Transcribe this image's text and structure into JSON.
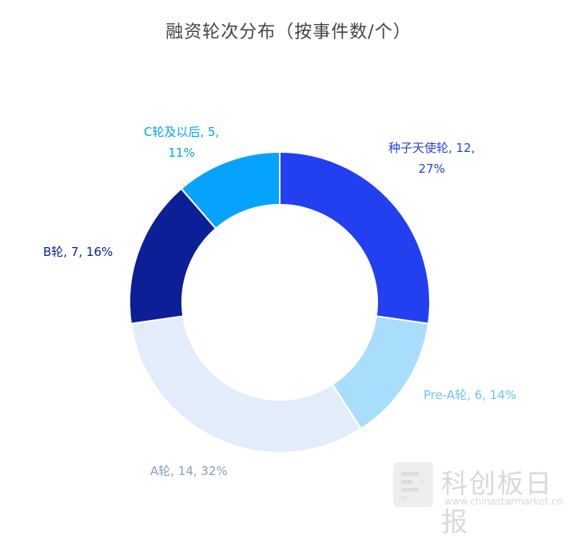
{
  "chart_data": {
    "type": "pie",
    "title": "融资轮次分布（按事件数/个）",
    "categories": [
      "种子天使轮",
      "Pre-A轮",
      "A轮",
      "B轮",
      "C轮及以后"
    ],
    "values": [
      12,
      6,
      14,
      7,
      5
    ],
    "percents": [
      "27%",
      "14%",
      "32%",
      "16%",
      "11%"
    ],
    "colors": [
      "#2340f0",
      "#a9ddfc",
      "#e3ecfa",
      "#0c1f96",
      "#06a2ff"
    ],
    "label_colors": [
      "#2340f0",
      "#6cc4f5",
      "#8a9bb8",
      "#0c1f96",
      "#06a2ff"
    ],
    "donut": true,
    "labels": [
      {
        "line1": "种子天使轮, 12,",
        "line2": "27%"
      },
      {
        "line1": "Pre-A轮, 6, 14%",
        "line2": ""
      },
      {
        "line1": "A轮, 14, 32%",
        "line2": ""
      },
      {
        "line1": "B轮, 7, 16%",
        "line2": ""
      },
      {
        "line1": "C轮及以后, 5,",
        "line2": "11%"
      }
    ]
  },
  "watermark": {
    "name": "科创板日报",
    "site": "www.chinastarmarket.cn"
  }
}
